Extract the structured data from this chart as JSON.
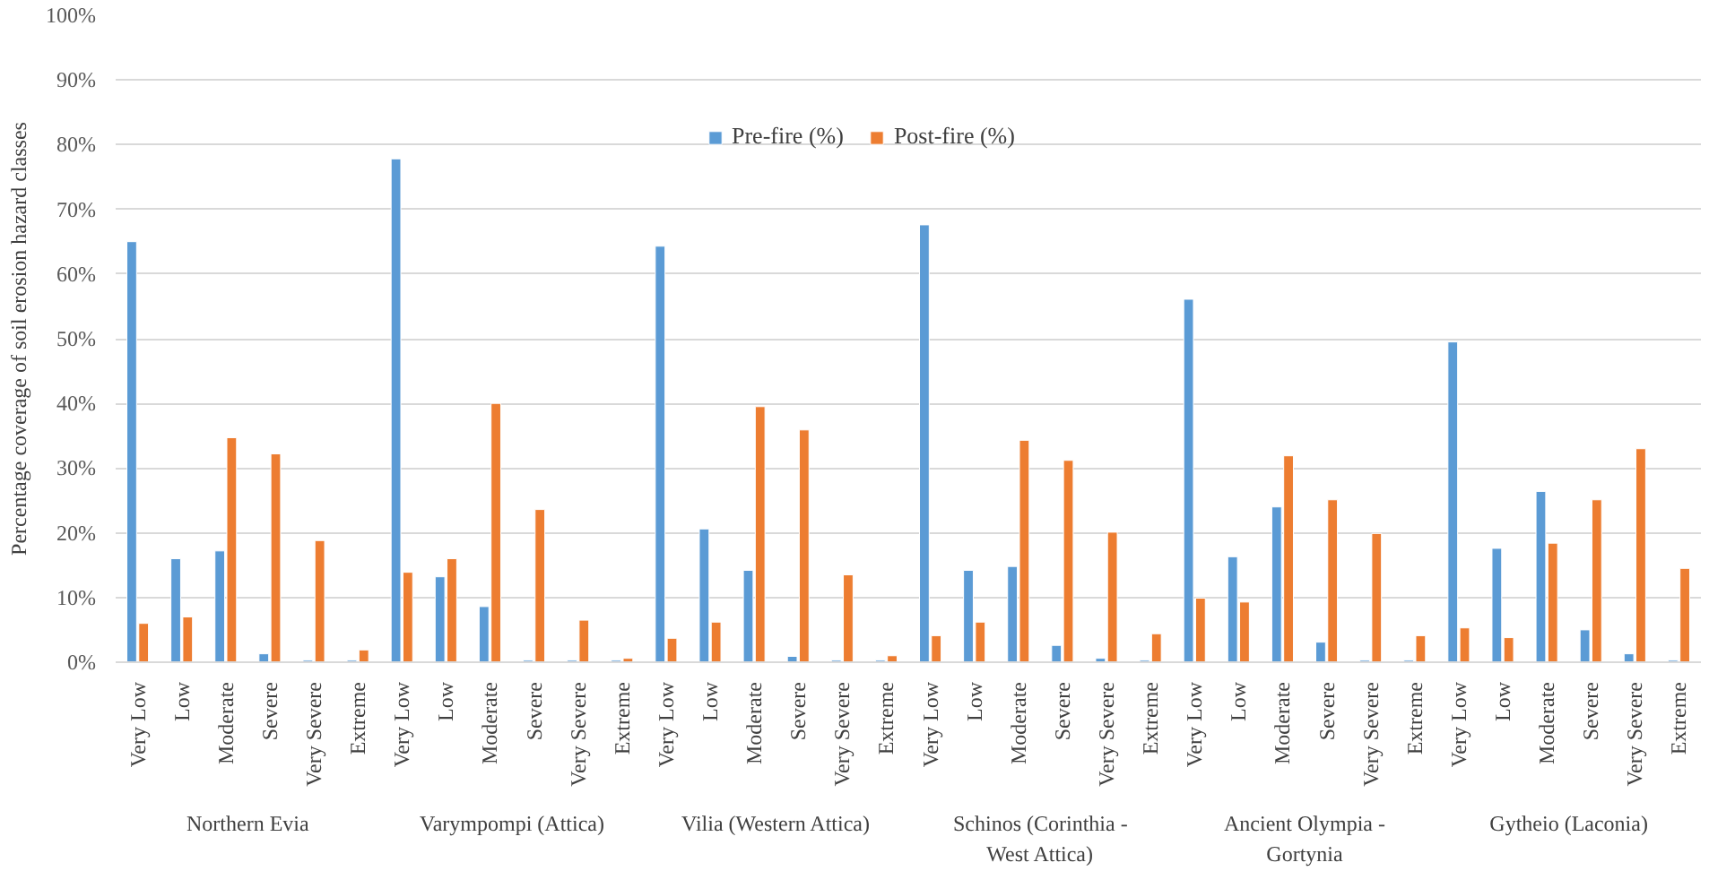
{
  "chart_data": {
    "type": "bar",
    "ylabel": "Percentage coverage of soil erosion hazard classes",
    "categories": [
      "Very Low",
      "Low",
      "Moderate",
      "Severe",
      "Very Severe",
      "Extreme",
      "Very Low",
      "Low",
      "Moderate",
      "Severe",
      "Very Severe",
      "Extreme",
      "Very Low",
      "Low",
      "Moderate",
      "Severe",
      "Very Severe",
      "Extreme",
      "Very Low",
      "Low",
      "Moderate",
      "Severe",
      "Very Severe",
      "Extreme",
      "Very Low",
      "Low",
      "Moderate",
      "Severe",
      "Very Severe",
      "Extreme",
      "Very Low",
      "Low",
      "Moderate",
      "Severe",
      "Very Severe",
      "Extreme"
    ],
    "series": [
      {
        "name": "Pre-fire (%)",
        "color": "#5b9bd5",
        "values": [
          65,
          16,
          17.2,
          1.3,
          0.3,
          0.3,
          77.8,
          13.2,
          8.6,
          0.3,
          0.3,
          0.3,
          64.3,
          20.6,
          14.2,
          0.9,
          0.3,
          0.3,
          67.6,
          14.2,
          14.8,
          2.6,
          0.6,
          0.3,
          56.1,
          16.3,
          24,
          3.1,
          0.3,
          0.3,
          49.5,
          17.6,
          26.4,
          5,
          1.3,
          0.3
        ]
      },
      {
        "name": "Post-fire (%)",
        "color": "#ed7d31",
        "values": [
          6,
          7,
          34.7,
          32.2,
          18.8,
          1.9,
          13.9,
          16,
          40,
          23.6,
          6.5,
          0.6,
          3.7,
          6.2,
          39.5,
          35.9,
          13.5,
          1,
          4.1,
          6.2,
          34.3,
          31.2,
          20.1,
          4.4,
          9.9,
          9.3,
          31.9,
          25.1,
          19.9,
          4.1,
          5.3,
          3.8,
          18.4,
          25.1,
          33,
          14.5
        ]
      }
    ],
    "annotations": [
      "Northern Evia",
      "Varympompi (Attica)",
      "Vilia (Western Attica)",
      "Schinos (Corinthia - West Attica)",
      "Ancient Olympia - Gortynia",
      "Gytheio (Laconia)"
    ],
    "ylim": [
      0,
      100
    ],
    "yticks": [
      {
        "value": 0,
        "label": "0%"
      },
      {
        "value": 10,
        "label": "10%"
      },
      {
        "value": 20,
        "label": "20%"
      },
      {
        "value": 30,
        "label": "30%"
      },
      {
        "value": 40,
        "label": "40%"
      },
      {
        "value": 50,
        "label": "50%"
      },
      {
        "value": 60,
        "label": "60%"
      },
      {
        "value": 70,
        "label": "70%"
      },
      {
        "value": 80,
        "label": "80%"
      },
      {
        "value": 90,
        "label": "90%"
      },
      {
        "value": 100,
        "label": "100%"
      }
    ],
    "grid": "y",
    "legend": "top"
  }
}
